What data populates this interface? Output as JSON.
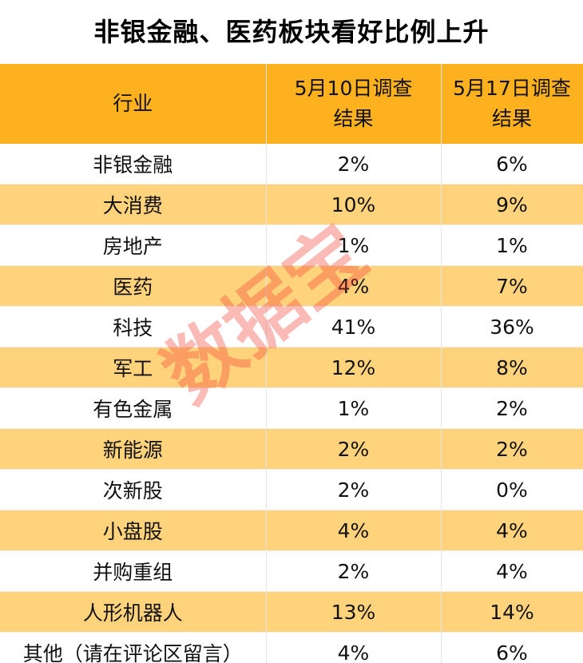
{
  "chart_data": {
    "type": "table",
    "title": "非银金融、医药板块看好比例上升",
    "columns": [
      "行业",
      "5月10日调查结果",
      "5月17日调查结果"
    ],
    "rows": [
      [
        "非银金融",
        "2%",
        "6%"
      ],
      [
        "大消费",
        "10%",
        "9%"
      ],
      [
        "房地产",
        "1%",
        "1%"
      ],
      [
        "医药",
        "4%",
        "7%"
      ],
      [
        "科技",
        "41%",
        "36%"
      ],
      [
        "军工",
        "12%",
        "8%"
      ],
      [
        "有色金属",
        "1%",
        "2%"
      ],
      [
        "新能源",
        "2%",
        "2%"
      ],
      [
        "次新股",
        "2%",
        "0%"
      ],
      [
        "小盘股",
        "4%",
        "4%"
      ],
      [
        "并购重组",
        "2%",
        "4%"
      ],
      [
        "人形机器人",
        "13%",
        "14%"
      ],
      [
        "其他（请在评论区留言）",
        "4%",
        "6%"
      ]
    ],
    "header_color": "#FDB11F",
    "alt_row_color": "#FFD37C"
  },
  "watermark": "数据宝"
}
